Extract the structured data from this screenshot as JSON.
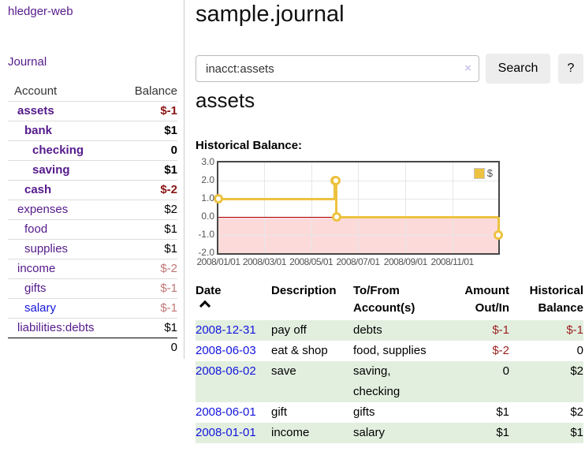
{
  "app": {
    "title": "hledger-web",
    "nav_journal": "Journal"
  },
  "colors": {
    "link_purple": "#551a8b",
    "link_blue": "#1414dd",
    "negative_strong": "#8b1414",
    "negative_soft": "#c17676",
    "table_negative": "#9c1f1f",
    "row_stripe_green": "#e2efdf",
    "series_gold": "#edc240",
    "chart_negative_region": "#fcdada",
    "chart_zero_line": "#a40000"
  },
  "sidebar": {
    "columns": {
      "account": "Account",
      "balance": "Balance"
    },
    "accounts": [
      {
        "name": "assets",
        "indent": 0,
        "bold": true,
        "link": "purple",
        "balance": "$-1",
        "balance_class": "neg-strong"
      },
      {
        "name": "bank",
        "indent": 1,
        "bold": true,
        "link": "purple",
        "balance": "$1",
        "balance_class": "pos"
      },
      {
        "name": "checking",
        "indent": 2,
        "bold": true,
        "link": "purple",
        "balance": "0",
        "balance_class": "pos"
      },
      {
        "name": "saving",
        "indent": 2,
        "bold": true,
        "link": "purple",
        "balance": "$1",
        "balance_class": "pos"
      },
      {
        "name": "cash",
        "indent": 1,
        "bold": true,
        "link": "purple",
        "balance": "$-2",
        "balance_class": "neg-strong"
      },
      {
        "name": "expenses",
        "indent": 0,
        "bold": false,
        "link": "purple",
        "balance": "$2",
        "balance_class": "pos"
      },
      {
        "name": "food",
        "indent": 1,
        "bold": false,
        "link": "purple",
        "balance": "$1",
        "balance_class": "pos"
      },
      {
        "name": "supplies",
        "indent": 1,
        "bold": false,
        "link": "purple",
        "balance": "$1",
        "balance_class": "pos"
      },
      {
        "name": "income",
        "indent": 0,
        "bold": false,
        "link": "purple",
        "balance": "$-2",
        "balance_class": "neg-soft"
      },
      {
        "name": "gifts",
        "indent": 1,
        "bold": false,
        "link": "purple",
        "balance": "$-1",
        "balance_class": "neg-soft"
      },
      {
        "name": "salary",
        "indent": 1,
        "bold": false,
        "link": "blue",
        "balance": "$-1",
        "balance_class": "neg-soft"
      },
      {
        "name": "liabilities:debts",
        "indent": 0,
        "bold": false,
        "link": "purple",
        "balance": "$1",
        "balance_class": "pos"
      }
    ],
    "total": "0"
  },
  "header": {
    "title": "sample.journal"
  },
  "search": {
    "value": "inacct:assets",
    "clear_icon": "×",
    "button": "Search",
    "help_button": "?"
  },
  "account_page": {
    "heading": "assets",
    "chart_label": "Historical Balance:"
  },
  "chart_data": {
    "type": "line",
    "step": true,
    "title": "Historical Balance:",
    "series": [
      {
        "name": "$",
        "color": "#edc240",
        "points": [
          [
            "2008-01-01",
            1
          ],
          [
            "2008-06-01",
            2
          ],
          [
            "2008-06-02",
            2
          ],
          [
            "2008-06-03",
            0
          ],
          [
            "2008-12-31",
            -1
          ]
        ]
      }
    ],
    "x_range": [
      "2008-01-01",
      "2008-12-31"
    ],
    "ylim": [
      -2,
      3
    ],
    "y_ticks": [
      3.0,
      2.0,
      1.0,
      0.0,
      -1.0,
      -2.0
    ],
    "x_ticks": [
      "2008/01/01",
      "2008/03/01",
      "2008/05/01",
      "2008/07/01",
      "2008/09/01",
      "2008/11/01"
    ],
    "grid": true,
    "legend_position": "top-right",
    "negative_region_color": "#fcdada",
    "zero_line_color": "#a40000"
  },
  "register": {
    "columns": [
      {
        "line1": "Date",
        "line2": "",
        "align": "left",
        "sort": "asc"
      },
      {
        "line1": "Description",
        "line2": "",
        "align": "left"
      },
      {
        "line1": "To/From",
        "line2": "Account(s)",
        "align": "left"
      },
      {
        "line1": "Amount",
        "line2": "Out/In",
        "align": "right"
      },
      {
        "line1": "Historical",
        "line2": "Balance",
        "align": "right"
      }
    ],
    "rows": [
      {
        "date": "2008-12-31",
        "description": "pay off",
        "accounts": "debts",
        "amount": "$-1",
        "amount_neg": true,
        "balance": "$-1",
        "balance_neg": true,
        "shade": true
      },
      {
        "date": "2008-06-03",
        "description": "eat & shop",
        "accounts": "food, supplies",
        "amount": "$-2",
        "amount_neg": true,
        "balance": "0",
        "balance_neg": false,
        "shade": false
      },
      {
        "date": "2008-06-02",
        "description": "save",
        "accounts": "saving, checking",
        "amount": "0",
        "amount_neg": false,
        "balance": "$2",
        "balance_neg": false,
        "shade": true
      },
      {
        "date": "2008-06-01",
        "description": "gift",
        "accounts": "gifts",
        "amount": "$1",
        "amount_neg": false,
        "balance": "$2",
        "balance_neg": false,
        "shade": false
      },
      {
        "date": "2008-01-01",
        "description": "income",
        "accounts": "salary",
        "amount": "$1",
        "amount_neg": false,
        "balance": "$1",
        "balance_neg": false,
        "shade": true
      }
    ]
  }
}
